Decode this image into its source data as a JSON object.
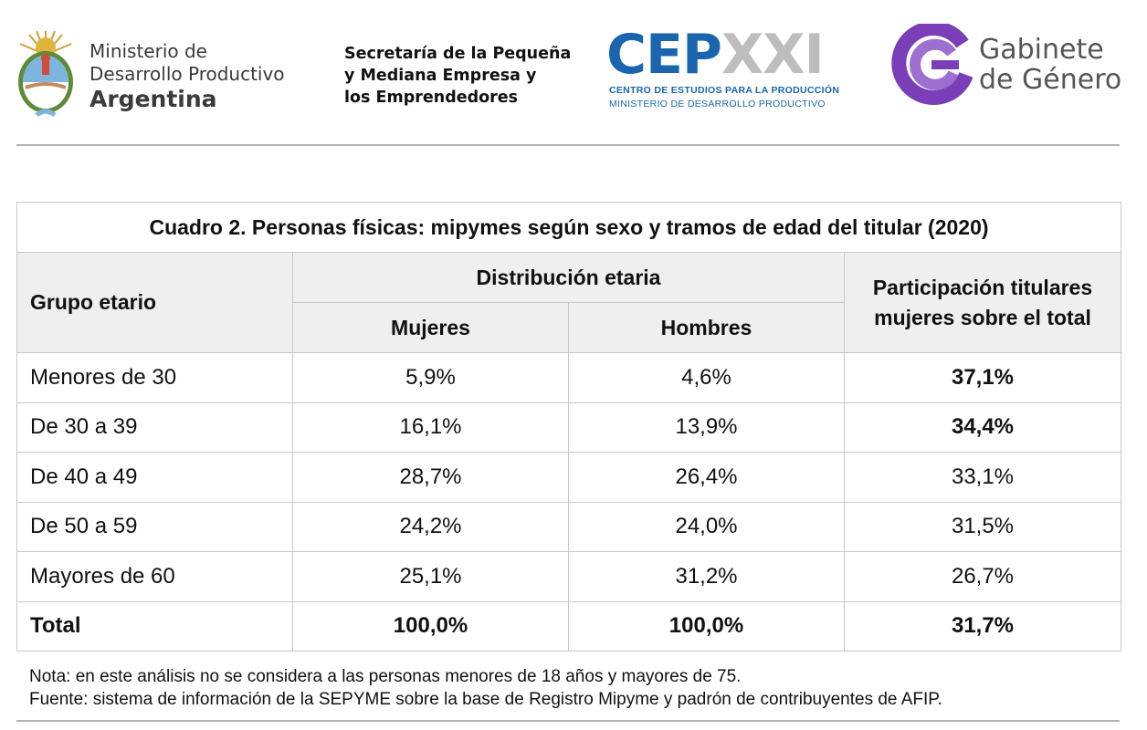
{
  "logos": {
    "ministerio": {
      "line1": "Ministerio de",
      "line2": "Desarrollo Productivo",
      "line3": "Argentina"
    },
    "secretaria": {
      "line1": "Secretaría de la Pequeña",
      "line2": "y Mediana Empresa y",
      "line3": "los Emprendedores"
    },
    "cep": {
      "word_part1": "CEP",
      "word_part2": "XXI",
      "sub1": "CENTRO DE ESTUDIOS PARA LA PRODUCCIÓN",
      "sub2": "MINISTERIO DE DESARROLLO PRODUCTIVO"
    },
    "gabinete": {
      "line1": "Gabinete",
      "line2": "de Género"
    }
  },
  "colors": {
    "cep_blue": "#1a65ae",
    "cep_grey": "#bdbdbd",
    "gabinete_purple": "#7a3fb8",
    "header_bg": "#efefef"
  },
  "table": {
    "caption": "Cuadro 2. Personas físicas: mipymes según sexo y tramos de edad del titular (2020)",
    "headers": {
      "grupo": "Grupo etario",
      "distribucion": "Distribución etaria",
      "mujeres": "Mujeres",
      "hombres": "Hombres",
      "participacion_line1": "Participación titulares",
      "participacion_line2": "mujeres sobre el total"
    },
    "rows": [
      {
        "grupo": "Menores de 30",
        "mujeres": "5,9%",
        "hombres": "4,6%",
        "participacion": "37,1%"
      },
      {
        "grupo": "De 30 a 39",
        "mujeres": "16,1%",
        "hombres": "13,9%",
        "participacion": "34,4%"
      },
      {
        "grupo": "De 40 a 49",
        "mujeres": "28,7%",
        "hombres": "26,4%",
        "participacion": "33,1%"
      },
      {
        "grupo": "De 50 a 59",
        "mujeres": "24,2%",
        "hombres": "24,0%",
        "participacion": "31,5%"
      },
      {
        "grupo": "Mayores de 60",
        "mujeres": "25,1%",
        "hombres": "31,2%",
        "participacion": "26,7%"
      }
    ],
    "total": {
      "grupo": "Total",
      "mujeres": "100,0%",
      "hombres": "100,0%",
      "participacion": "31,7%"
    }
  },
  "notes": {
    "nota": "Nota: en este análisis no se considera a las personas menores de 18 años y mayores de 75.",
    "fuente": "Fuente: sistema de información de la SEPYME sobre la base de Registro Mipyme y padrón de contribuyentes de AFIP."
  }
}
